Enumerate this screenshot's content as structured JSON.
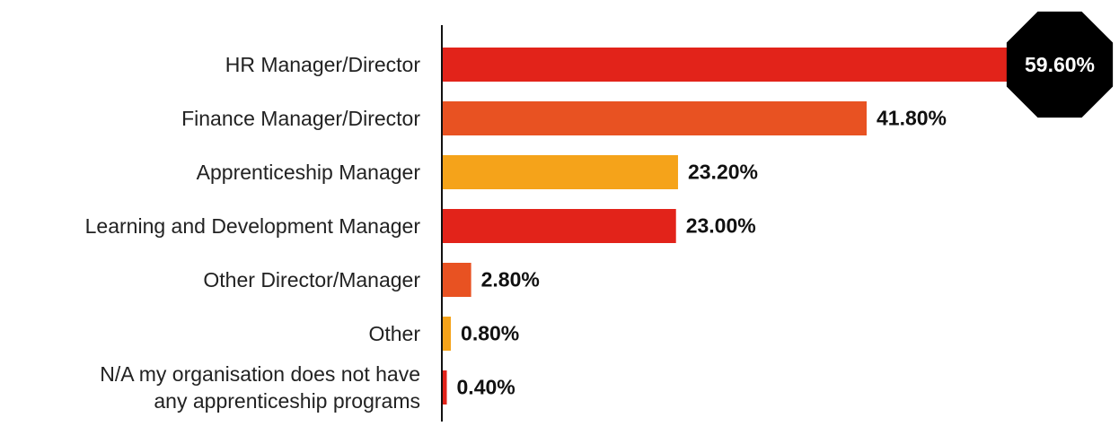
{
  "chart_data": {
    "type": "bar",
    "orientation": "horizontal",
    "categories": [
      "HR Manager/Director",
      "Finance Manager/Director",
      "Apprenticeship Manager",
      "Learning and Development Manager",
      "Other Director/Manager",
      "Other",
      "N/A my organisation does not have\nany apprenticeship programs"
    ],
    "values": [
      59.6,
      41.8,
      23.2,
      23.0,
      2.8,
      0.8,
      0.4
    ],
    "value_labels": [
      "59.60%",
      "41.80%",
      "23.20%",
      "23.00%",
      "2.80%",
      "0.80%",
      "0.40%"
    ],
    "colors": [
      "#e2231a",
      "#e85222",
      "#f5a31a",
      "#e2231a",
      "#e85222",
      "#f5a31a",
      "#e2231a"
    ]
  }
}
